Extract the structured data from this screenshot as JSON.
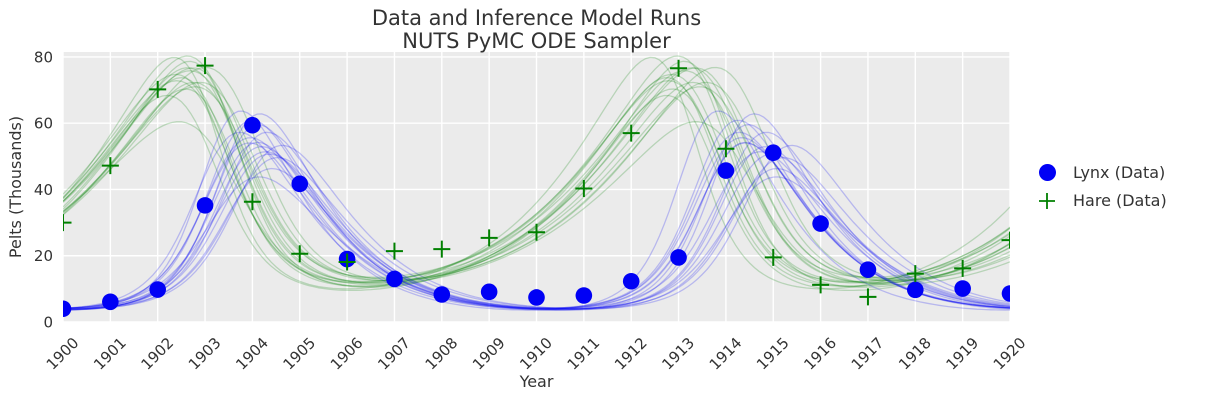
{
  "figure": {
    "background": "#ffffff",
    "plot_background": "#ebebeb",
    "grid_color": "#ffffff",
    "text_color": "#333333"
  },
  "chart_data": {
    "type": "scatter+line-ensemble",
    "title": "Data and Inference Model Runs",
    "subtitle": "NUTS PyMC ODE Sampler",
    "xlabel": "Year",
    "ylabel": "Pelts (Thousands)",
    "x": [
      1900,
      1901,
      1902,
      1903,
      1904,
      1905,
      1906,
      1907,
      1908,
      1909,
      1910,
      1911,
      1912,
      1913,
      1914,
      1915,
      1916,
      1917,
      1918,
      1919,
      1920
    ],
    "y_ticks": [
      0,
      20,
      40,
      60,
      80
    ],
    "xlim": [
      1900,
      1920
    ],
    "ylim": [
      0,
      81.5
    ],
    "grid": true,
    "legend_position": "outside-right",
    "series": [
      {
        "name": "Lynx (Data)",
        "marker": "circle",
        "color": "#0000f5",
        "values": [
          4,
          6.1,
          9.8,
          35.2,
          59.4,
          41.7,
          19,
          13,
          8.3,
          9.1,
          7.4,
          8,
          12.3,
          19.5,
          45.7,
          51.1,
          29.7,
          15.8,
          9.7,
          10.1,
          8.6
        ]
      },
      {
        "name": "Hare (Data)",
        "marker": "plus",
        "color": "#008000",
        "values": [
          30,
          47.2,
          70.2,
          77.4,
          36.3,
          20.6,
          18.1,
          21.4,
          22,
          25.4,
          27.1,
          40.3,
          57,
          76.6,
          52.3,
          19.5,
          11.2,
          7.6,
          14.6,
          16.2,
          24.7
        ]
      }
    ],
    "model_runs": {
      "count": 16,
      "hare_color": "#008000",
      "lynx_color": "#0000f5",
      "line_alpha": 0.22,
      "line_width": 1.3,
      "ode_params": {
        "alpha": 0.479,
        "beta": 0.0248,
        "gamma": 0.928,
        "delta": 0.0276,
        "hare0": 34.9,
        "lynx0": 3.86
      },
      "jitter_sigma": 0.045,
      "seed": 11
    }
  }
}
